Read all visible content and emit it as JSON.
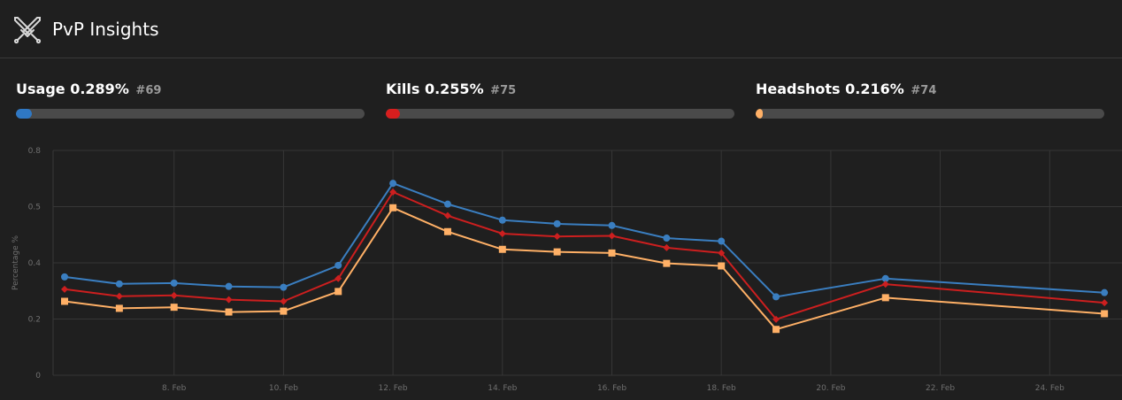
{
  "header": {
    "title": "PvP Insights",
    "icon": "crossed-swords-icon"
  },
  "stats": [
    {
      "label": "Usage",
      "value": "0.289%",
      "rank": "#69",
      "fill_fraction": 0.045,
      "color": "#2f78c4"
    },
    {
      "label": "Kills",
      "value": "0.255%",
      "rank": "#75",
      "fill_fraction": 0.04,
      "color": "#d81e1e"
    },
    {
      "label": "Headshots",
      "value": "0.216%",
      "rank": "#74",
      "fill_fraction": 0.02,
      "color": "#ffb066"
    }
  ],
  "chart_data": {
    "type": "line",
    "title": "",
    "xlabel": "",
    "ylabel": "Percentage %",
    "ylim": [
      0,
      0.8
    ],
    "y_ticks": [
      "0",
      "0.2",
      "0.4",
      "0.5",
      "0.8"
    ],
    "x_ticks": [
      "8. Feb",
      "10. Feb",
      "12. Feb",
      "14. Feb",
      "16. Feb",
      "18. Feb",
      "20. Feb",
      "22. Feb",
      "24. Feb"
    ],
    "grid": true,
    "legend": "none",
    "x": [
      "6. Feb",
      "7. Feb",
      "8. Feb",
      "9. Feb",
      "10. Feb",
      "11. Feb",
      "12. Feb",
      "13. Feb",
      "14. Feb",
      "15. Feb",
      "16. Feb",
      "17. Feb",
      "18. Feb",
      "19. Feb",
      "21. Feb",
      "25. Feb"
    ],
    "series": [
      {
        "color": "#3a7ec0",
        "marker": "circle",
        "values": [
          0.35,
          0.325,
          0.328,
          0.316,
          0.313,
          0.391,
          0.683,
          0.609,
          0.552,
          0.539,
          0.533,
          0.488,
          0.477,
          0.279,
          0.344,
          0.294
        ]
      },
      {
        "color": "#cc1f1f",
        "marker": "diamond",
        "values": [
          0.306,
          0.281,
          0.284,
          0.269,
          0.263,
          0.344,
          0.652,
          0.568,
          0.504,
          0.494,
          0.496,
          0.454,
          0.435,
          0.199,
          0.324,
          0.258
        ]
      },
      {
        "color": "#ffb066",
        "marker": "square",
        "values": [
          0.263,
          0.238,
          0.242,
          0.225,
          0.228,
          0.298,
          0.596,
          0.511,
          0.448,
          0.439,
          0.435,
          0.398,
          0.389,
          0.163,
          0.276,
          0.219
        ]
      }
    ]
  }
}
